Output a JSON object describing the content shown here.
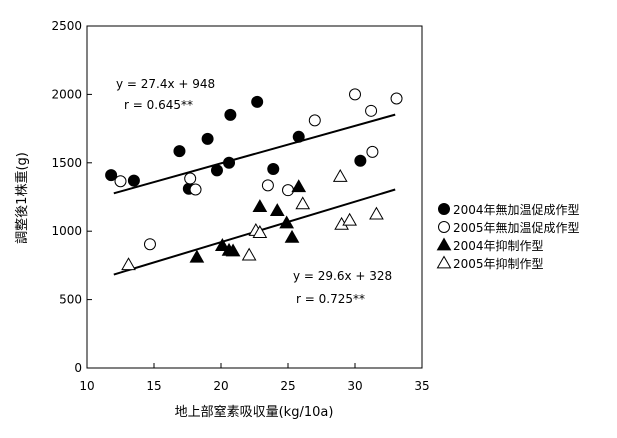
{
  "chart_data": {
    "type": "scatter",
    "xlabel": "地上部窒素吸収量(kg/10a)",
    "ylabel": "調整後1株重(g)",
    "xlim": [
      10,
      35
    ],
    "ylim": [
      0,
      2500
    ],
    "xticks": [
      "10",
      "15",
      "20",
      "25",
      "30",
      "35"
    ],
    "yticks": [
      "0",
      "500",
      "1000",
      "1500",
      "2000",
      "2500"
    ],
    "grid": false,
    "legend_position": "right",
    "series": [
      {
        "name": "2004年無加温促成作型",
        "marker": "filled-circle",
        "x": [
          11.8,
          13.5,
          16.9,
          17.6,
          19.0,
          19.7,
          20.6,
          20.7,
          22.7,
          23.9,
          25.8,
          30.4
        ],
        "y": [
          1410,
          1370,
          1585,
          1310,
          1675,
          1445,
          1500,
          1850,
          1945,
          1455,
          1690,
          1515
        ]
      },
      {
        "name": "2005年無加温促成作型",
        "marker": "open-circle",
        "x": [
          12.5,
          14.7,
          17.7,
          18.1,
          23.5,
          25.0,
          27.0,
          30.0,
          31.2,
          31.3,
          33.1
        ],
        "y": [
          1365,
          905,
          1385,
          1305,
          1335,
          1300,
          1810,
          2000,
          1880,
          1580,
          1970
        ]
      },
      {
        "name": "2004年抑制作型",
        "marker": "filled-triangle",
        "x": [
          18.2,
          20.1,
          20.6,
          20.9,
          22.9,
          24.2,
          24.9,
          25.3,
          25.8
        ],
        "y": [
          810,
          895,
          860,
          855,
          1180,
          1150,
          1060,
          955,
          1325
        ]
      },
      {
        "name": "2005年抑制作型",
        "marker": "open-triangle",
        "x": [
          13.1,
          22.1,
          22.6,
          22.9,
          26.1,
          28.9,
          29.0,
          29.6,
          31.6
        ],
        "y": [
          755,
          825,
          1005,
          990,
          1200,
          1400,
          1050,
          1080,
          1125
        ]
      }
    ],
    "trendlines": [
      {
        "x": [
          12.0,
          33.0
        ],
        "y": [
          1276.8,
          1852.2
        ],
        "equation": "y = 27.4x + 948",
        "r": "r = 0.645**"
      },
      {
        "x": [
          12.0,
          33.0
        ],
        "y": [
          683.2,
          1304.8
        ],
        "equation": "y = 29.6x + 328",
        "r": "r = 0.725**"
      }
    ]
  }
}
